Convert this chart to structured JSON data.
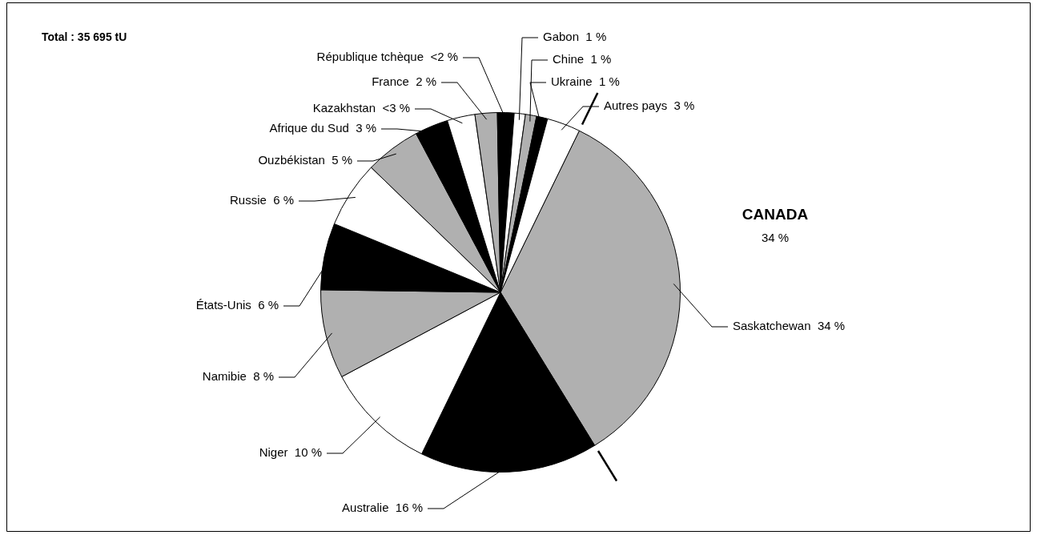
{
  "chart_data": {
    "type": "pie",
    "categories": [
      "Saskatchewan",
      "Australie",
      "Niger",
      "Namibie",
      "États-Unis",
      "Russie",
      "Ouzbékistan",
      "Afrique du Sud",
      "Kazakhstan",
      "France",
      "République tchèque",
      "Gabon",
      "Chine",
      "Ukraine",
      "Autres pays"
    ],
    "values": [
      34,
      16,
      10,
      8,
      6,
      6,
      5,
      3,
      2.5,
      2,
      1.5,
      1,
      1,
      1,
      3
    ],
    "value_labels": [
      "34 %",
      "16 %",
      "10 %",
      "8 %",
      "6 %",
      "6 %",
      "5 %",
      "3 %",
      "<3 %",
      "2 %",
      "<2 %",
      "1 %",
      "1 %",
      "1 %",
      "3 %"
    ],
    "colors": [
      "#b0b0b0",
      "#000000",
      "#ffffff",
      "#b0b0b0",
      "#000000",
      "#ffffff",
      "#b0b0b0",
      "#000000",
      "#ffffff",
      "#b0b0b0",
      "#000000",
      "#ffffff",
      "#b0b0b0",
      "#000000",
      "#ffffff"
    ],
    "annotations": [
      "Total : 35 695 tU",
      "CANADA",
      "34 %"
    ],
    "legend": false
  }
}
